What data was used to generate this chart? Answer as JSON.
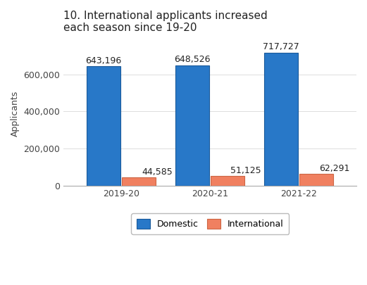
{
  "title": "10. International applicants increased\neach season since 19-20",
  "ylabel": "Applicants",
  "categories": [
    "2019-20",
    "2020-21",
    "2021-22"
  ],
  "domestic": [
    643196,
    648526,
    717727
  ],
  "international": [
    44585,
    51125,
    62291
  ],
  "domestic_color": "#2878C8",
  "domestic_edgecolor": "#1a5a9a",
  "international_color": "#F08060",
  "international_edgecolor": "#cc6644",
  "domestic_label": "Domestic",
  "international_label": "International",
  "ylim": [
    0,
    780000
  ],
  "yticks": [
    0,
    200000,
    400000,
    600000
  ],
  "bar_width": 0.38,
  "bar_gap": 0.02,
  "background_color": "#ffffff",
  "title_fontsize": 11,
  "axis_fontsize": 9,
  "tick_fontsize": 9,
  "annotation_fontsize": 9,
  "legend_fontsize": 9
}
